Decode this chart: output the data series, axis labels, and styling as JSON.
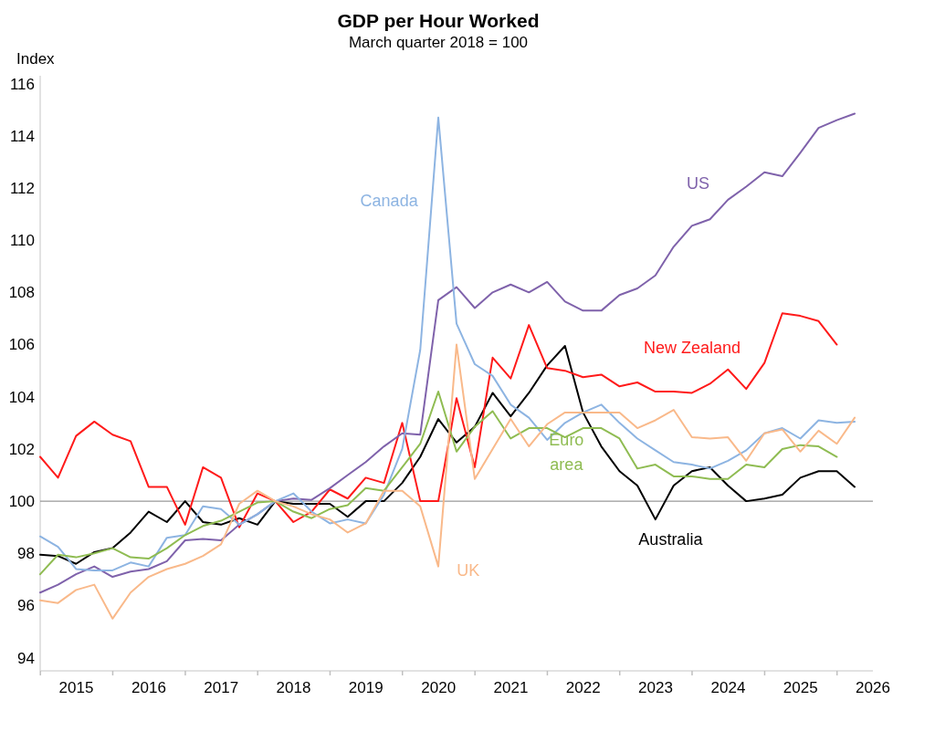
{
  "chart_data": {
    "type": "line",
    "title": "GDP per Hour Worked",
    "subtitle": "March quarter 2018 = 100",
    "ylabel": "Index",
    "x": [
      "2014-12-31",
      "2015-03-31",
      "2015-06-30",
      "2015-09-30",
      "2015-12-31",
      "2016-03-31",
      "2016-06-30",
      "2016-09-30",
      "2016-12-31",
      "2017-03-31",
      "2017-06-30",
      "2017-09-30",
      "2017-12-31",
      "2018-03-31",
      "2018-06-30",
      "2018-09-30",
      "2018-12-31",
      "2019-03-31",
      "2019-06-30",
      "2019-09-30",
      "2019-12-31",
      "2020-03-31",
      "2020-06-30",
      "2020-09-30",
      "2020-12-31",
      "2021-03-31",
      "2021-06-30",
      "2021-09-30",
      "2021-12-31",
      "2022-03-31",
      "2022-06-30",
      "2022-09-30",
      "2022-12-31",
      "2023-03-31",
      "2023-06-30",
      "2023-09-30",
      "2023-12-31",
      "2024-03-31",
      "2024-06-30",
      "2024-09-30",
      "2024-12-31",
      "2025-03-31",
      "2025-06-30",
      "2025-09-30",
      "2025-12-31",
      "2026-03-31"
    ],
    "series": [
      {
        "name": "Australia",
        "color": "#000000",
        "values": [
          97.95,
          97.9,
          97.6,
          98.05,
          98.2,
          98.8,
          99.6,
          99.2,
          100.0,
          99.2,
          99.1,
          99.35,
          99.1,
          100.0,
          99.9,
          99.9,
          99.9,
          99.4,
          100.0,
          100.0,
          100.7,
          101.7,
          103.15,
          102.25,
          102.85,
          104.15,
          103.25,
          104.15,
          105.2,
          105.95,
          103.4,
          102.1,
          101.15,
          100.6,
          99.3,
          100.6,
          101.15,
          101.3,
          100.6,
          100.0,
          100.1,
          100.25,
          100.9,
          101.15,
          101.15,
          100.55
        ]
      },
      {
        "name": "New Zealand",
        "color": "#ff1a1a",
        "values": [
          101.7,
          100.9,
          102.5,
          103.05,
          102.55,
          102.3,
          100.55,
          100.55,
          99.1,
          101.3,
          100.9,
          99.0,
          100.3,
          100.0,
          99.2,
          99.6,
          100.45,
          100.1,
          100.9,
          100.7,
          103.0,
          100.0,
          100.0,
          103.95,
          101.3,
          105.5,
          104.7,
          106.75,
          105.1,
          105.0,
          104.75,
          104.85,
          104.4,
          104.55,
          104.2,
          104.2,
          104.15,
          104.5,
          105.05,
          104.3,
          105.3,
          107.2,
          107.1,
          106.9,
          106.0,
          null
        ]
      },
      {
        "name": "US",
        "color": "#7f62ab",
        "values": [
          96.5,
          96.8,
          97.2,
          97.5,
          97.1,
          97.3,
          97.4,
          97.7,
          98.5,
          98.55,
          98.5,
          99.1,
          99.5,
          100.0,
          100.1,
          100.05,
          100.5,
          101.0,
          101.5,
          102.1,
          102.6,
          102.55,
          107.7,
          108.2,
          107.4,
          108.0,
          108.3,
          108.0,
          108.4,
          107.65,
          107.3,
          107.3,
          107.9,
          108.15,
          108.65,
          109.75,
          110.55,
          110.8,
          111.55,
          112.05,
          112.6,
          112.45,
          113.35,
          114.3,
          114.6,
          114.85
        ]
      },
      {
        "name": "Canada",
        "color": "#8db4e2",
        "values": [
          98.65,
          98.25,
          97.4,
          97.35,
          97.35,
          97.65,
          97.5,
          98.6,
          98.7,
          99.8,
          99.7,
          99.1,
          99.5,
          100.0,
          100.3,
          99.6,
          99.15,
          99.3,
          99.15,
          100.25,
          102.0,
          105.8,
          114.7,
          106.8,
          105.25,
          104.8,
          103.7,
          103.2,
          102.35,
          103.0,
          103.4,
          103.7,
          103.0,
          102.4,
          101.95,
          101.5,
          101.4,
          101.25,
          101.55,
          101.95,
          102.6,
          102.8,
          102.4,
          103.1,
          103.0,
          103.05
        ]
      },
      {
        "name": "Euro area",
        "color": "#8fbc52",
        "values": [
          97.2,
          97.95,
          97.85,
          98.0,
          98.2,
          97.85,
          97.8,
          98.2,
          98.7,
          99.05,
          99.25,
          99.6,
          99.95,
          100.0,
          99.6,
          99.35,
          99.7,
          99.85,
          100.5,
          100.4,
          101.3,
          102.2,
          104.2,
          101.9,
          102.85,
          103.45,
          102.4,
          102.8,
          102.8,
          102.45,
          102.8,
          102.8,
          102.4,
          101.25,
          101.4,
          100.95,
          100.95,
          100.85,
          100.85,
          101.4,
          101.3,
          102.0,
          102.15,
          102.1,
          101.7,
          null
        ]
      },
      {
        "name": "UK",
        "color": "#f9b98a",
        "values": [
          96.2,
          96.1,
          96.6,
          96.8,
          95.5,
          96.5,
          97.1,
          97.4,
          97.6,
          97.9,
          98.35,
          99.9,
          100.4,
          100.0,
          99.8,
          99.5,
          99.3,
          98.8,
          99.15,
          100.4,
          100.4,
          99.8,
          97.5,
          106.0,
          100.85,
          102.0,
          103.15,
          102.1,
          102.95,
          103.4,
          103.4,
          103.4,
          103.4,
          102.8,
          103.1,
          103.5,
          102.45,
          102.4,
          102.45,
          101.55,
          102.6,
          102.75,
          101.9,
          102.7,
          102.2,
          103.2
        ]
      }
    ],
    "xlim": [
      "2014-12-31",
      "2026-07-01"
    ],
    "xticks": [
      {
        "value": "2015-01-01",
        "label": null
      },
      {
        "value": "2015-07-01",
        "label": "2015"
      },
      {
        "value": "2016-01-01",
        "label": null
      },
      {
        "value": "2016-07-01",
        "label": "2016"
      },
      {
        "value": "2017-01-01",
        "label": null
      },
      {
        "value": "2017-07-01",
        "label": "2017"
      },
      {
        "value": "2018-01-01",
        "label": null
      },
      {
        "value": "2018-07-01",
        "label": "2018"
      },
      {
        "value": "2019-01-01",
        "label": null
      },
      {
        "value": "2019-07-01",
        "label": "2019"
      },
      {
        "value": "2020-01-01",
        "label": null
      },
      {
        "value": "2020-07-01",
        "label": "2020"
      },
      {
        "value": "2021-01-01",
        "label": null
      },
      {
        "value": "2021-07-01",
        "label": "2021"
      },
      {
        "value": "2022-01-01",
        "label": null
      },
      {
        "value": "2022-07-01",
        "label": "2022"
      },
      {
        "value": "2023-01-01",
        "label": null
      },
      {
        "value": "2023-07-01",
        "label": "2023"
      },
      {
        "value": "2024-01-01",
        "label": null
      },
      {
        "value": "2024-07-01",
        "label": "2024"
      },
      {
        "value": "2025-01-01",
        "label": null
      },
      {
        "value": "2025-07-01",
        "label": "2025"
      },
      {
        "value": "2026-01-01",
        "label": null
      },
      {
        "value": "2026-07-01",
        "label": "2026"
      }
    ],
    "ylim": [
      93.5,
      116.3
    ],
    "yticks": [
      94,
      96,
      98,
      100,
      102,
      104,
      106,
      108,
      110,
      112,
      114,
      116
    ],
    "ref_lines": [
      {
        "axis": "y",
        "value": 100,
        "color": "#808080"
      }
    ]
  }
}
